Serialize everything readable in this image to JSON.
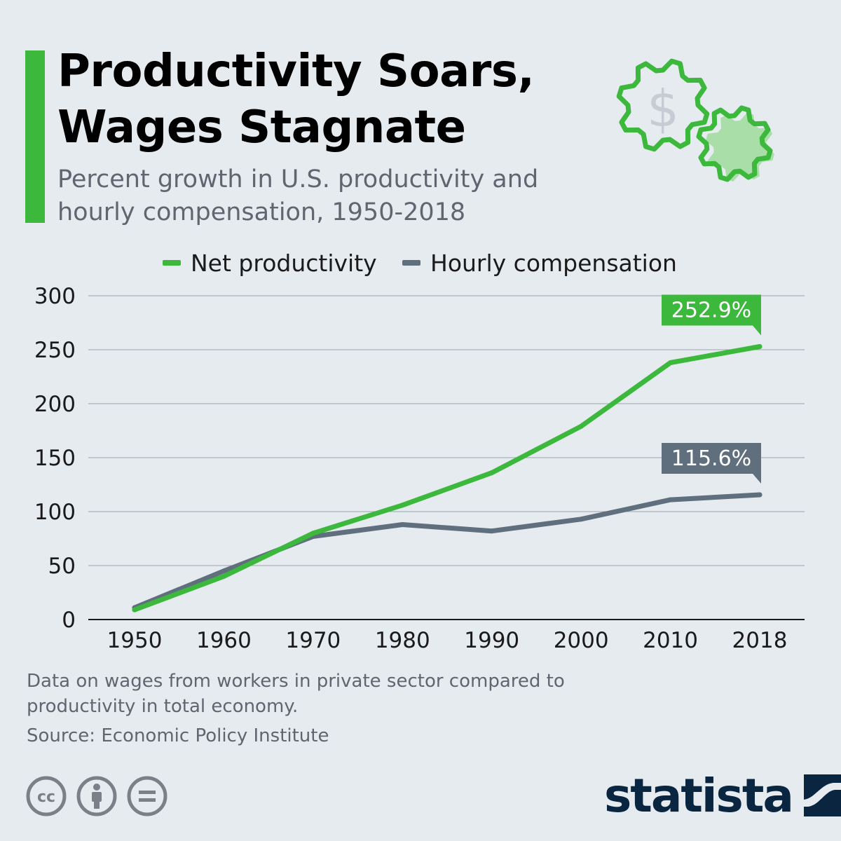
{
  "header": {
    "title": "Productivity Soars, Wages Stagnate",
    "subtitle": "Percent growth in U.S. productivity and hourly compensation, 1950-2018"
  },
  "legend": {
    "items": [
      {
        "label": "Net productivity",
        "color": "#3cb93c"
      },
      {
        "label": "Hourly compensation",
        "color": "#5f6f7e"
      }
    ]
  },
  "chart_data": {
    "type": "line",
    "title": "Productivity Soars, Wages Stagnate",
    "subtitle": "Percent growth in U.S. productivity and hourly compensation, 1950-2018",
    "x": [
      "1950",
      "1960",
      "1970",
      "1980",
      "1990",
      "2000",
      "2010",
      "2018"
    ],
    "y_ticks": [
      0,
      50,
      100,
      150,
      200,
      250,
      300
    ],
    "ylim": [
      0,
      300
    ],
    "grid": true,
    "legend_position": "top",
    "series": [
      {
        "name": "Net productivity",
        "color": "#3cb93c",
        "values": [
          9,
          40,
          80,
          106,
          136,
          179,
          238,
          252.9
        ],
        "end_label": "252.9%"
      },
      {
        "name": "Hourly compensation",
        "color": "#5f6f7e",
        "values": [
          11,
          45,
          77,
          88,
          82,
          93,
          111,
          115.6
        ],
        "end_label": "115.6%"
      }
    ]
  },
  "footer": {
    "note": "Data on wages from workers in private sector compared to productivity in total economy.",
    "source": "Source: Economic Policy Institute",
    "brand": "statista"
  },
  "icons": {
    "gears": "gears-dollar-icon",
    "cc": "creative-commons-icon",
    "attribution": "attribution-icon",
    "no_derivatives": "no-derivatives-icon",
    "brand_logo": "statista-logo-icon"
  },
  "colors": {
    "background": "#e6ebf0",
    "accent": "#3cb93c",
    "secondary": "#5f6f7e",
    "brand": "#0a2540"
  }
}
